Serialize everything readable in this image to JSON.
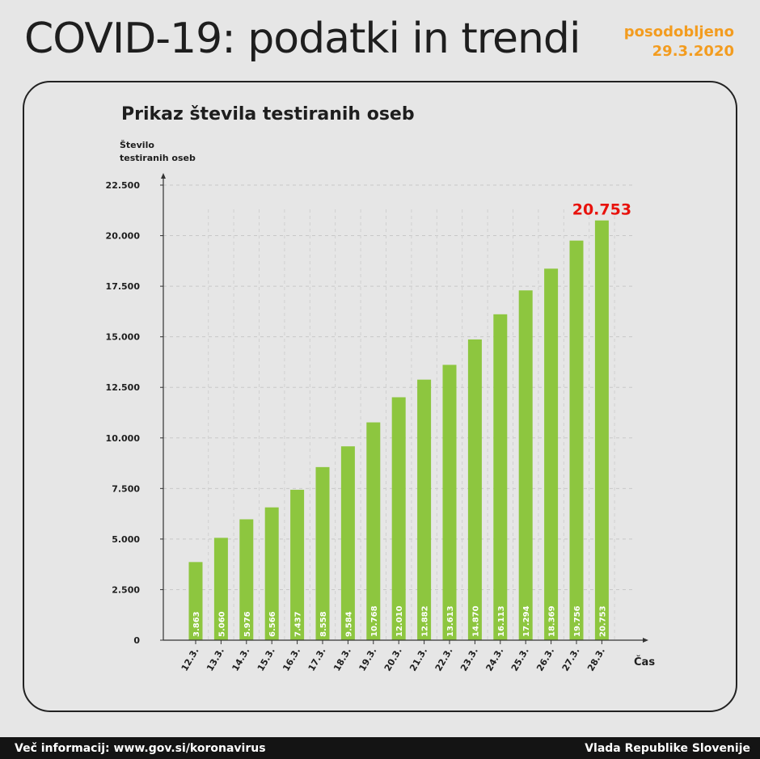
{
  "header": {
    "title": "COVID-19: podatki in trendi",
    "updated_label": "posodobljeno",
    "updated_date": "29.3.2020"
  },
  "footer": {
    "left": "Več informacij: www.gov.si/koronavirus",
    "right": "Vlada Republike Slovenije"
  },
  "colors": {
    "bar": "#8dc63f",
    "highlight": "#e8120c",
    "accent": "#f39c1f"
  },
  "chart_data": {
    "type": "bar",
    "title": "Prikaz števila testiranih oseb",
    "ylabel": "Število testiranih oseb",
    "ylabel_lines": [
      "Število",
      "testiranih oseb"
    ],
    "xlabel": "Čas",
    "ylim": [
      0,
      22500
    ],
    "yticks": [
      0,
      2500,
      5000,
      7500,
      10000,
      12500,
      15000,
      17500,
      20000,
      22500
    ],
    "ytick_labels": [
      "0",
      "2.500",
      "5.000",
      "7.500",
      "10.000",
      "12.500",
      "15.000",
      "17.500",
      "20.000",
      "22.500"
    ],
    "grid": true,
    "categories": [
      "12.3.",
      "13.3.",
      "14.3.",
      "15.3.",
      "16.3.",
      "17.3.",
      "18.3.",
      "19.3.",
      "20.3.",
      "21.3.",
      "22.3.",
      "23.3.",
      "24.3.",
      "25.3.",
      "26.3.",
      "27.3.",
      "28.3."
    ],
    "values": [
      3863,
      5060,
      5976,
      6566,
      7437,
      8558,
      9584,
      10768,
      12010,
      12882,
      13613,
      14870,
      16113,
      17294,
      18369,
      19756,
      20753
    ],
    "value_labels": [
      "3.863",
      "5.060",
      "5.976",
      "6.566",
      "7.437",
      "8.558",
      "9.584",
      "10.768",
      "12.010",
      "12.882",
      "13.613",
      "14.870",
      "16.113",
      "17.294",
      "18.369",
      "19.756",
      "20.753"
    ],
    "annotation": "20.753"
  }
}
